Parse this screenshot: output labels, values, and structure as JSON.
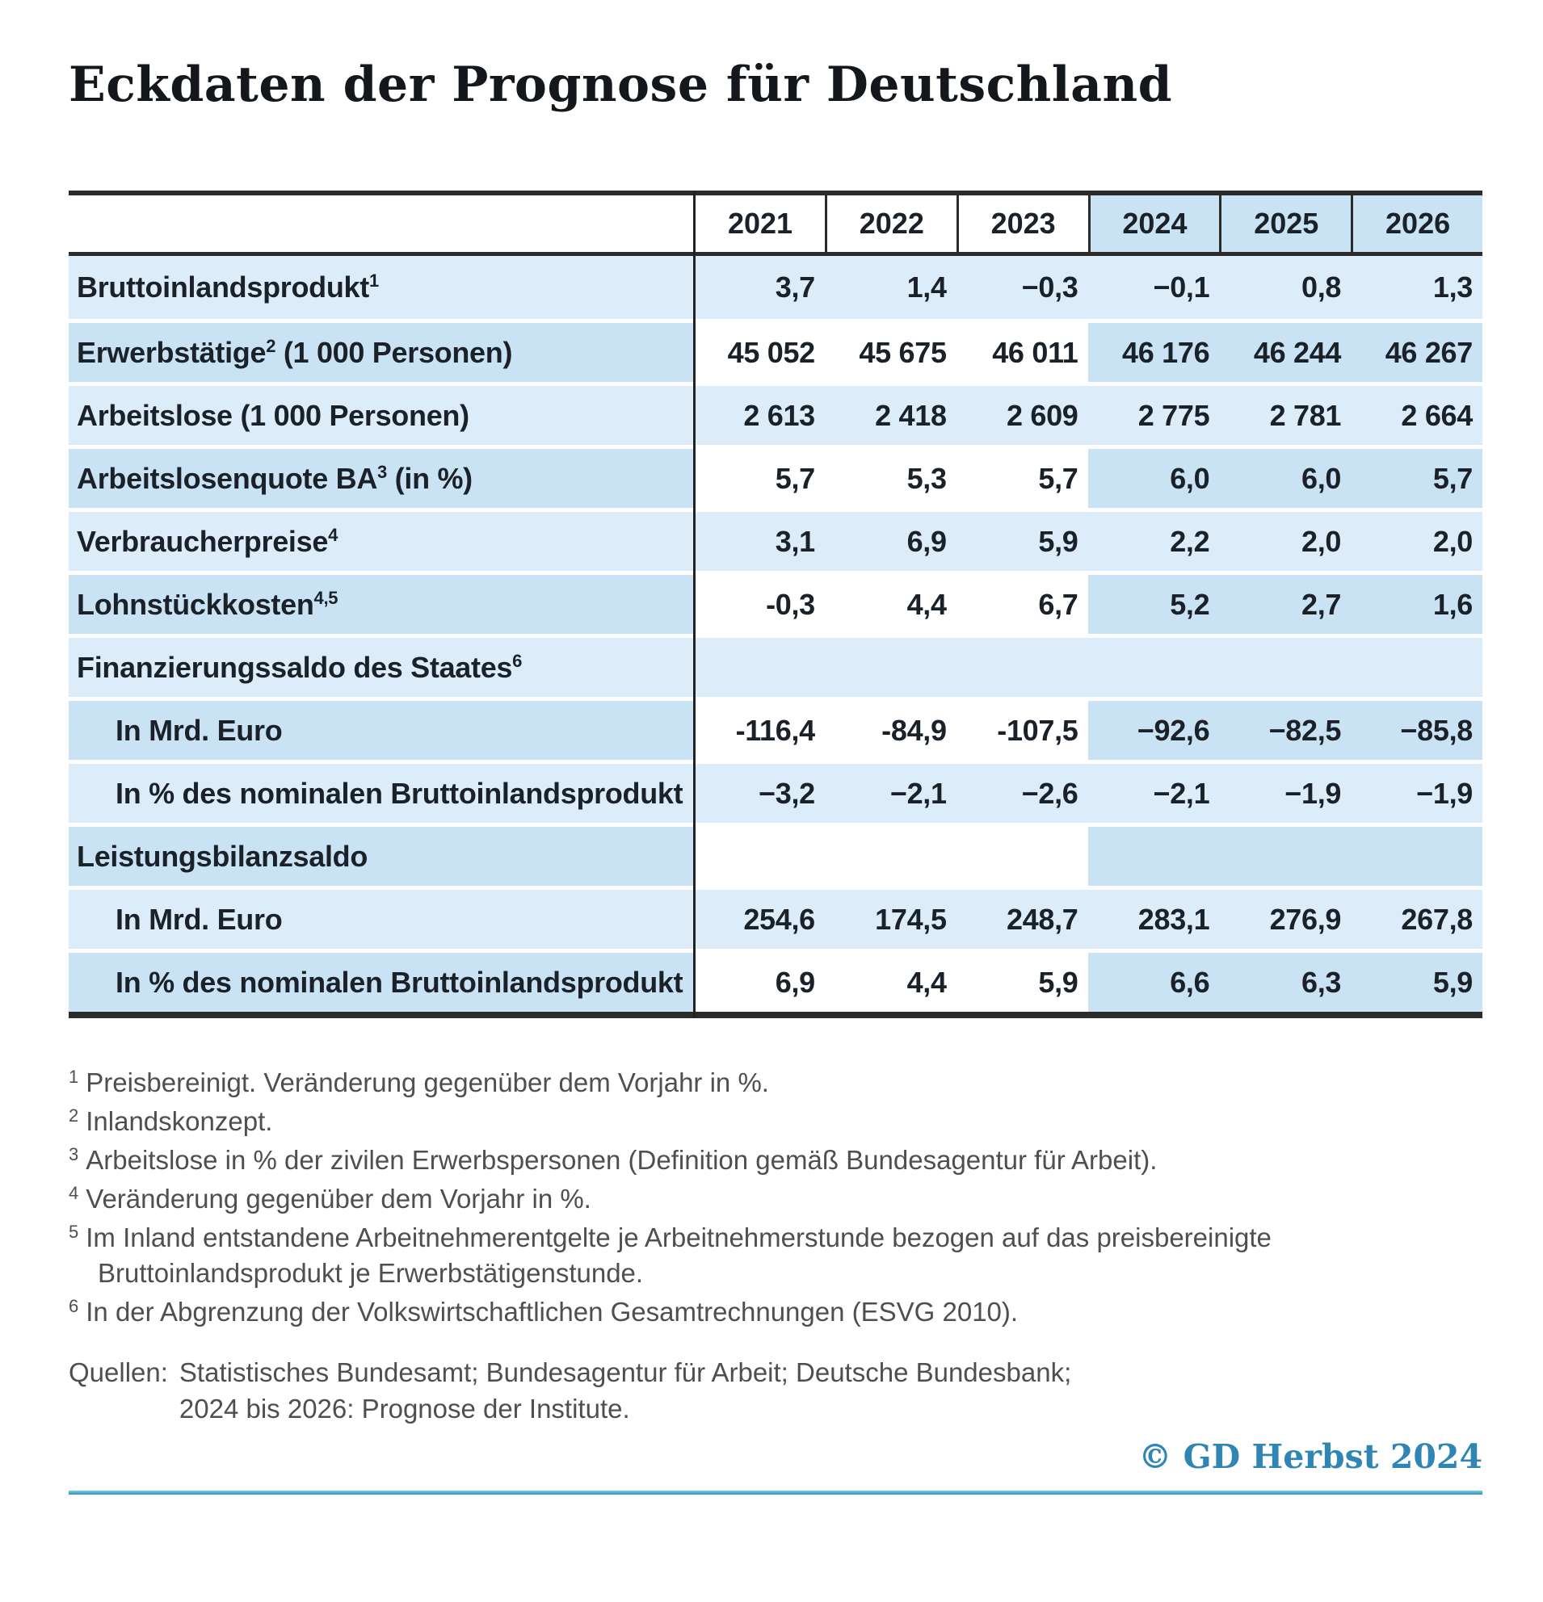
{
  "page": {
    "title": "Eckdaten der Prognose für Deutschland"
  },
  "table": {
    "years": [
      "2021",
      "2022",
      "2023",
      "2024",
      "2025",
      "2026"
    ],
    "rows": [
      {
        "pre": "Bruttoinlandsprodukt",
        "sup": "1",
        "post": "",
        "indent": false,
        "values": [
          "3,7",
          "1,4",
          "−0,3",
          "−0,1",
          "0,8",
          "1,3"
        ]
      },
      {
        "pre": "Erwerbstätige",
        "sup": "2",
        "post": " (1 000 Personen)",
        "indent": false,
        "values": [
          "45 052",
          "45 675",
          "46 011",
          "46 176",
          "46 244",
          "46 267"
        ]
      },
      {
        "pre": "Arbeitslose (1 000 Personen)",
        "sup": "",
        "post": "",
        "indent": false,
        "values": [
          "2 613",
          "2 418",
          "2 609",
          "2 775",
          "2 781",
          "2 664"
        ]
      },
      {
        "pre": "Arbeitslosenquote BA",
        "sup": "3",
        "post": " (in %)",
        "indent": false,
        "values": [
          "5,7",
          "5,3",
          "5,7",
          "6,0",
          "6,0",
          "5,7"
        ]
      },
      {
        "pre": "Verbraucherpreise",
        "sup": "4",
        "post": "",
        "indent": false,
        "values": [
          "3,1",
          "6,9",
          "5,9",
          "2,2",
          "2,0",
          "2,0"
        ]
      },
      {
        "pre": "Lohnstückkosten",
        "sup": "4,5",
        "post": "",
        "indent": false,
        "values": [
          "-0,3",
          "4,4",
          "6,7",
          "5,2",
          "2,7",
          "1,6"
        ]
      },
      {
        "pre": "Finanzierungssaldo des Staates",
        "sup": "6",
        "post": "",
        "indent": false,
        "values": [
          "",
          "",
          "",
          "",
          "",
          ""
        ]
      },
      {
        "pre": "In Mrd. Euro",
        "sup": "",
        "post": "",
        "indent": true,
        "values": [
          "-116,4",
          "-84,9",
          "-107,5",
          "−92,6",
          "−82,5",
          "−85,8"
        ]
      },
      {
        "pre": "In % des nominalen Bruttoinlandsprodukt",
        "sup": "",
        "post": "",
        "indent": true,
        "values": [
          "−3,2",
          "−2,1",
          "−2,6",
          "−2,1",
          "−1,9",
          "−1,9"
        ]
      },
      {
        "pre": "Leistungsbilanzsaldo",
        "sup": "",
        "post": "",
        "indent": false,
        "values": [
          "",
          "",
          "",
          "",
          "",
          ""
        ]
      },
      {
        "pre": "In Mrd. Euro",
        "sup": "",
        "post": "",
        "indent": true,
        "values": [
          "254,6",
          "174,5",
          "248,7",
          "283,1",
          "276,9",
          "267,8"
        ]
      },
      {
        "pre": "In % des nominalen Bruttoinlandsprodukt",
        "sup": "",
        "post": "",
        "indent": true,
        "values": [
          "6,9",
          "4,4",
          "5,9",
          "6,6",
          "6,3",
          "5,9"
        ]
      }
    ]
  },
  "footnotes": [
    {
      "marker": "1",
      "text": "Preisbereinigt. Veränderung gegenüber dem Vorjahr in %."
    },
    {
      "marker": "2",
      "text": "Inlandskonzept."
    },
    {
      "marker": "3",
      "text": "Arbeitslose in % der zivilen Erwerbspersonen (Definition gemäß Bundesagentur für Arbeit)."
    },
    {
      "marker": "4",
      "text": "Veränderung gegenüber dem Vorjahr in %."
    },
    {
      "marker": "5",
      "text": "Im Inland entstandene Arbeitnehmerentgelte je Arbeitnehmerstunde bezogen auf das preisbereinigte Bruttoinlandsprodukt je Erwerbstätigenstunde."
    },
    {
      "marker": "6",
      "text": "In der Abgrenzung der Volkswirtschaftlichen Gesamtrechnungen (ESVG 2010)."
    }
  ],
  "sources": {
    "label": "Quellen:",
    "lines": [
      "Statistisches Bundesamt; Bundesagentur für Arbeit; Deutsche Bundesbank;",
      "2024 bis 2026: Prognose der Institute."
    ]
  },
  "credit": {
    "text": "© GD Herbst 2024"
  },
  "colors": {
    "row_light": "#dcedf9",
    "row_dark": "#c9e3f5",
    "forecast_header": "#c9e3f5",
    "table_rule": "#2b2b2b",
    "credit_blue": "#2f86b4",
    "bottom_rule_blue": "#49a9d2"
  },
  "chart_data": {
    "type": "table",
    "title": "Eckdaten der Prognose für Deutschland",
    "columns": [
      "2021",
      "2022",
      "2023",
      "2024",
      "2025",
      "2026"
    ],
    "forecast_columns": [
      "2024",
      "2025",
      "2026"
    ],
    "rows": [
      {
        "label": "Bruttoinlandsprodukt¹",
        "values": [
          3.7,
          1.4,
          -0.3,
          -0.1,
          0.8,
          1.3
        ]
      },
      {
        "label": "Erwerbstätige² (1 000 Personen)",
        "values": [
          45052,
          45675,
          46011,
          46176,
          46244,
          46267
        ]
      },
      {
        "label": "Arbeitslose (1 000 Personen)",
        "values": [
          2613,
          2418,
          2609,
          2775,
          2781,
          2664
        ]
      },
      {
        "label": "Arbeitslosenquote BA³ (in %)",
        "values": [
          5.7,
          5.3,
          5.7,
          6.0,
          6.0,
          5.7
        ]
      },
      {
        "label": "Verbraucherpreise⁴",
        "values": [
          3.1,
          6.9,
          5.9,
          2.2,
          2.0,
          2.0
        ]
      },
      {
        "label": "Lohnstückkosten⁴,⁵",
        "values": [
          -0.3,
          4.4,
          6.7,
          5.2,
          2.7,
          1.6
        ]
      },
      {
        "label": "Finanzierungssaldo des Staates⁶",
        "values": [
          null,
          null,
          null,
          null,
          null,
          null
        ]
      },
      {
        "label": "Finanzierungssaldo des Staates⁶ — In Mrd. Euro",
        "values": [
          -116.4,
          -84.9,
          -107.5,
          -92.6,
          -82.5,
          -85.8
        ]
      },
      {
        "label": "Finanzierungssaldo des Staates⁶ — In % des nominalen Bruttoinlandsprodukt",
        "values": [
          -3.2,
          -2.1,
          -2.6,
          -2.1,
          -1.9,
          -1.9
        ]
      },
      {
        "label": "Leistungsbilanzsaldo",
        "values": [
          null,
          null,
          null,
          null,
          null,
          null
        ]
      },
      {
        "label": "Leistungsbilanzsaldo — In Mrd. Euro",
        "values": [
          254.6,
          174.5,
          248.7,
          283.1,
          276.9,
          267.8
        ]
      },
      {
        "label": "Leistungsbilanzsaldo — In % des nominalen Bruttoinlandsprodukt",
        "values": [
          6.9,
          4.4,
          5.9,
          6.6,
          6.3,
          5.9
        ]
      }
    ]
  }
}
